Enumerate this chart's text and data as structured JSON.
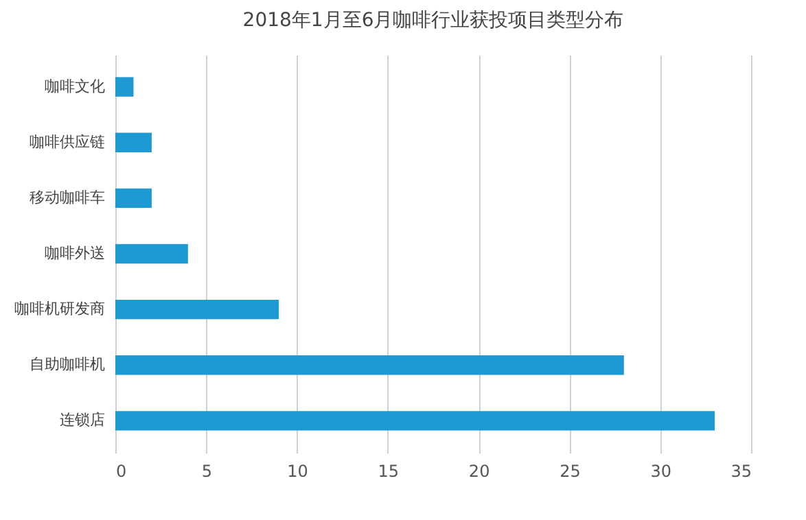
{
  "chart_data": {
    "type": "bar",
    "orientation": "horizontal",
    "title": "2018年1月至6月咖啡行业获投项目类型分布",
    "categories": [
      "咖啡文化",
      "咖啡供应链",
      "移动咖啡车",
      "咖啡外送",
      "咖啡机研发商",
      "自助咖啡机",
      "连锁店"
    ],
    "values": [
      1,
      2,
      2,
      4,
      9,
      28,
      33
    ],
    "color": "#1e9ad2",
    "xlim": [
      0,
      35
    ],
    "xticks": [
      0,
      5,
      10,
      15,
      20,
      25,
      30,
      35
    ],
    "grid": "x"
  }
}
